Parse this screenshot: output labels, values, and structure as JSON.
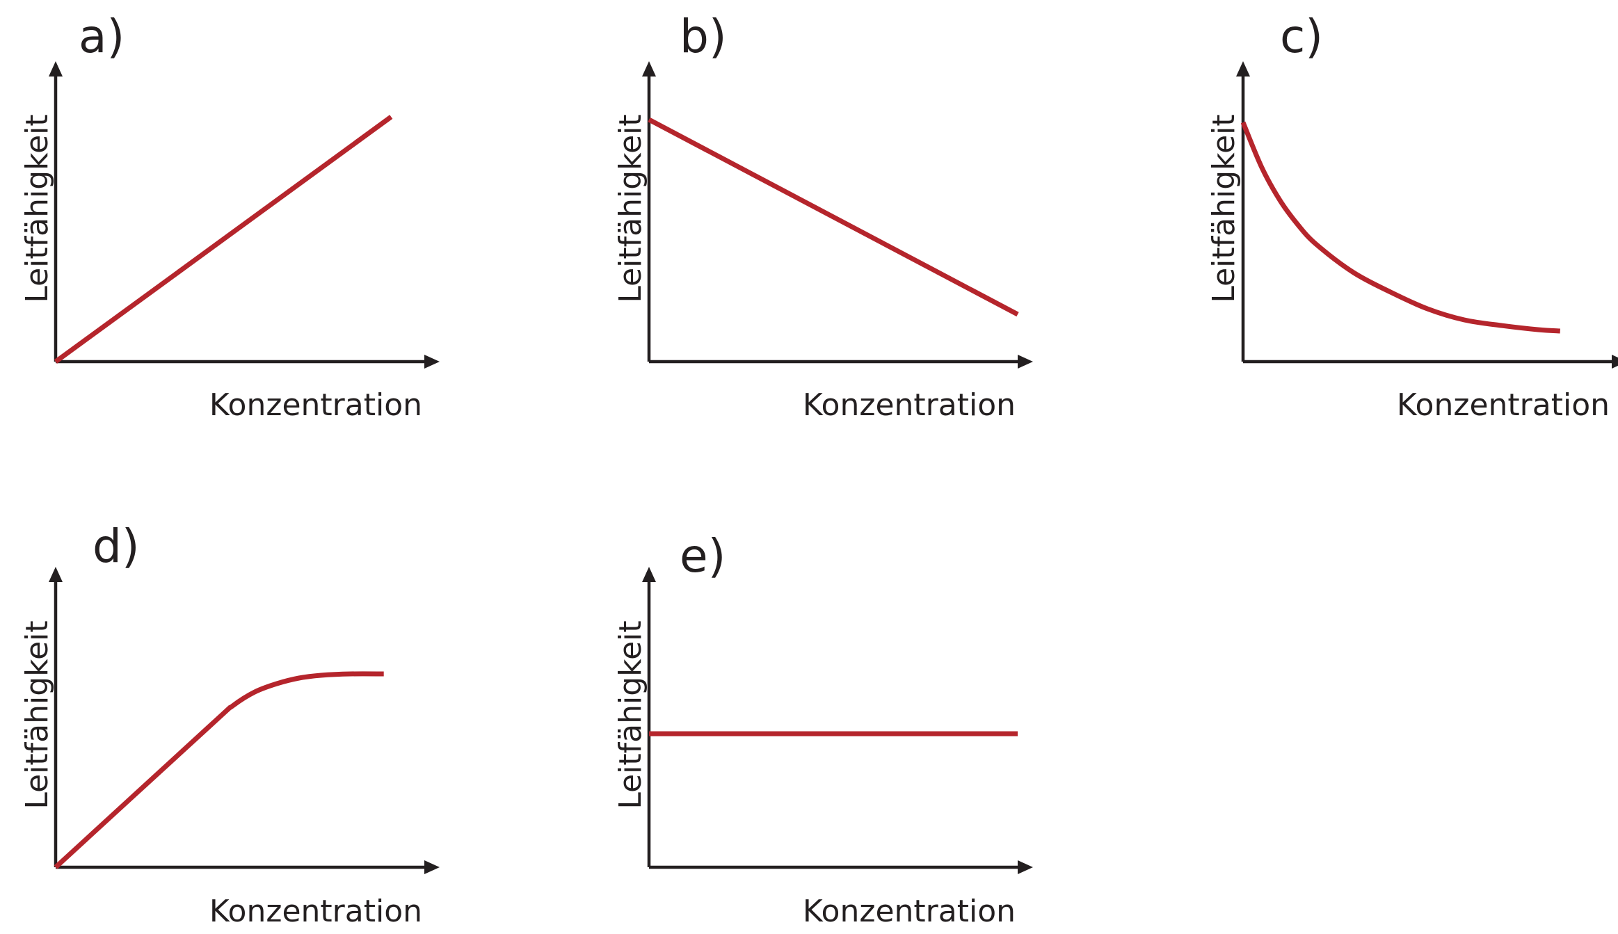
{
  "chart_data": [
    {
      "panel_label": "a)",
      "type": "line",
      "xlabel": "Konzentration",
      "ylabel": "Leitfähigkeit",
      "xlim": [
        0,
        1
      ],
      "ylim": [
        0,
        1
      ],
      "series": [
        {
          "x": [
            0,
            0.91
          ],
          "y": [
            0,
            0.88
          ]
        }
      ],
      "grid": false,
      "colors": {
        "curve": "#b5252c",
        "axis": "#231f20"
      }
    },
    {
      "panel_label": "b)",
      "type": "line",
      "xlabel": "Konzentration",
      "ylabel": "Leitfähigkeit",
      "xlim": [
        0,
        1
      ],
      "ylim": [
        0,
        1
      ],
      "series": [
        {
          "x": [
            0,
            1.0
          ],
          "y": [
            0.87,
            0.17
          ]
        }
      ],
      "grid": false,
      "colors": {
        "curve": "#b5252c",
        "axis": "#231f20"
      }
    },
    {
      "panel_label": "c)",
      "type": "line",
      "xlabel": "Konzentration",
      "ylabel": "Leitfähigkeit",
      "xlim": [
        0,
        1
      ],
      "ylim": [
        0,
        1
      ],
      "series": [
        {
          "x": [
            0,
            0.05,
            0.1,
            0.15,
            0.2,
            0.3,
            0.4,
            0.5,
            0.6,
            0.7,
            0.8,
            0.86
          ],
          "y": [
            0.86,
            0.7,
            0.58,
            0.49,
            0.42,
            0.32,
            0.25,
            0.19,
            0.15,
            0.13,
            0.115,
            0.11
          ]
        }
      ],
      "grid": false,
      "colors": {
        "curve": "#b5252c",
        "axis": "#231f20"
      }
    },
    {
      "panel_label": "d)",
      "type": "line",
      "xlabel": "Konzentration",
      "ylabel": "Leitfähigkeit",
      "xlim": [
        0,
        1
      ],
      "ylim": [
        0,
        1
      ],
      "series": [
        {
          "x": [
            0,
            0.42,
            0.48,
            0.54,
            0.6,
            0.66,
            0.72,
            0.8,
            0.89
          ],
          "y": [
            0,
            0.51,
            0.58,
            0.63,
            0.66,
            0.68,
            0.69,
            0.695,
            0.695
          ]
        }
      ],
      "grid": false,
      "colors": {
        "curve": "#b5252c",
        "axis": "#231f20"
      }
    },
    {
      "panel_label": "e)",
      "type": "line",
      "xlabel": "Konzentration",
      "ylabel": "Leitfähigkeit",
      "xlim": [
        0,
        1
      ],
      "ylim": [
        0,
        1
      ],
      "series": [
        {
          "x": [
            0,
            1.0
          ],
          "y": [
            0.48,
            0.48
          ]
        }
      ],
      "grid": false,
      "colors": {
        "curve": "#b5252c",
        "axis": "#231f20"
      }
    }
  ]
}
